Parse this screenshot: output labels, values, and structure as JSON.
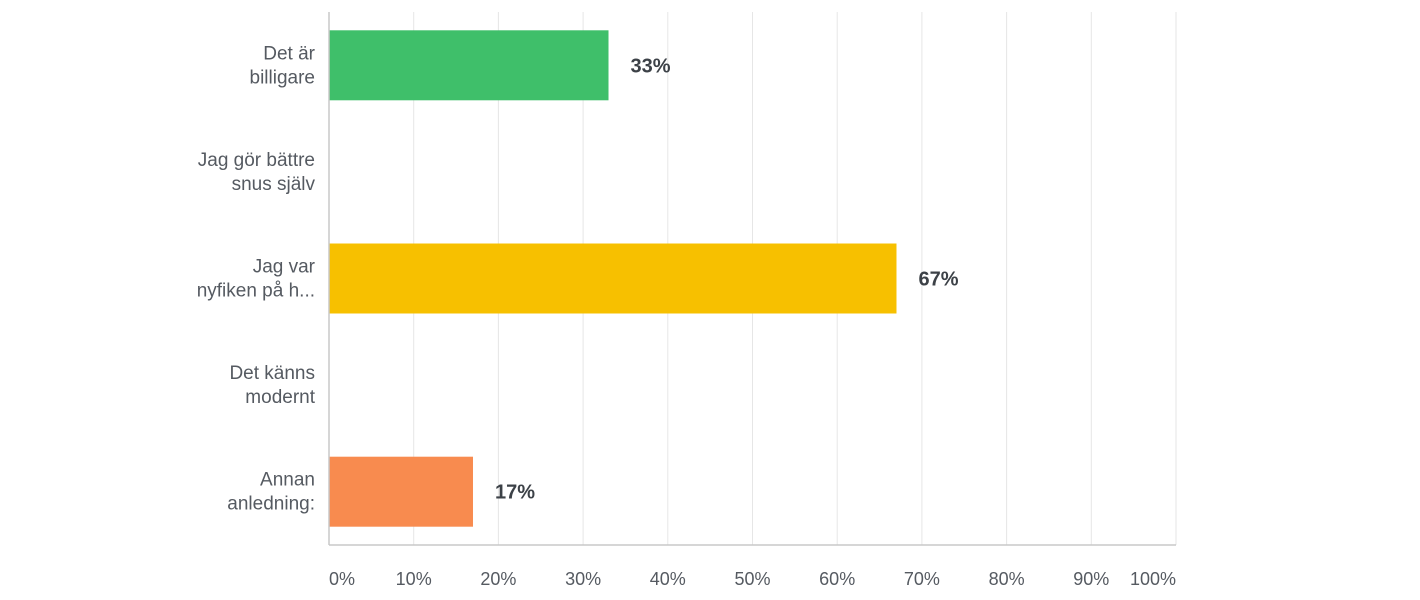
{
  "chart_data": {
    "type": "bar",
    "orientation": "horizontal",
    "categories": [
      [
        "Det är",
        "billigare"
      ],
      [
        "Jag gör bättre",
        "snus själv"
      ],
      [
        "Jag var",
        "nyfiken på h..."
      ],
      [
        "Det känns",
        "modernt"
      ],
      [
        "Annan",
        "anledning:"
      ]
    ],
    "values": [
      33,
      0,
      67,
      0,
      17
    ],
    "data_labels": [
      "33%",
      "",
      "67%",
      "",
      "17%"
    ],
    "colors": [
      "#3fbf6a",
      "#f7c000",
      "#f7c000",
      "#f7c000",
      "#f88b4f"
    ],
    "xlim": [
      0,
      100
    ],
    "xticks": [
      0,
      10,
      20,
      30,
      40,
      50,
      60,
      70,
      80,
      90,
      100
    ],
    "xtick_labels": [
      "0%",
      "10%",
      "20%",
      "30%",
      "40%",
      "50%",
      "60%",
      "70%",
      "80%",
      "90%",
      "100%"
    ],
    "grid": true,
    "legend": "none"
  }
}
